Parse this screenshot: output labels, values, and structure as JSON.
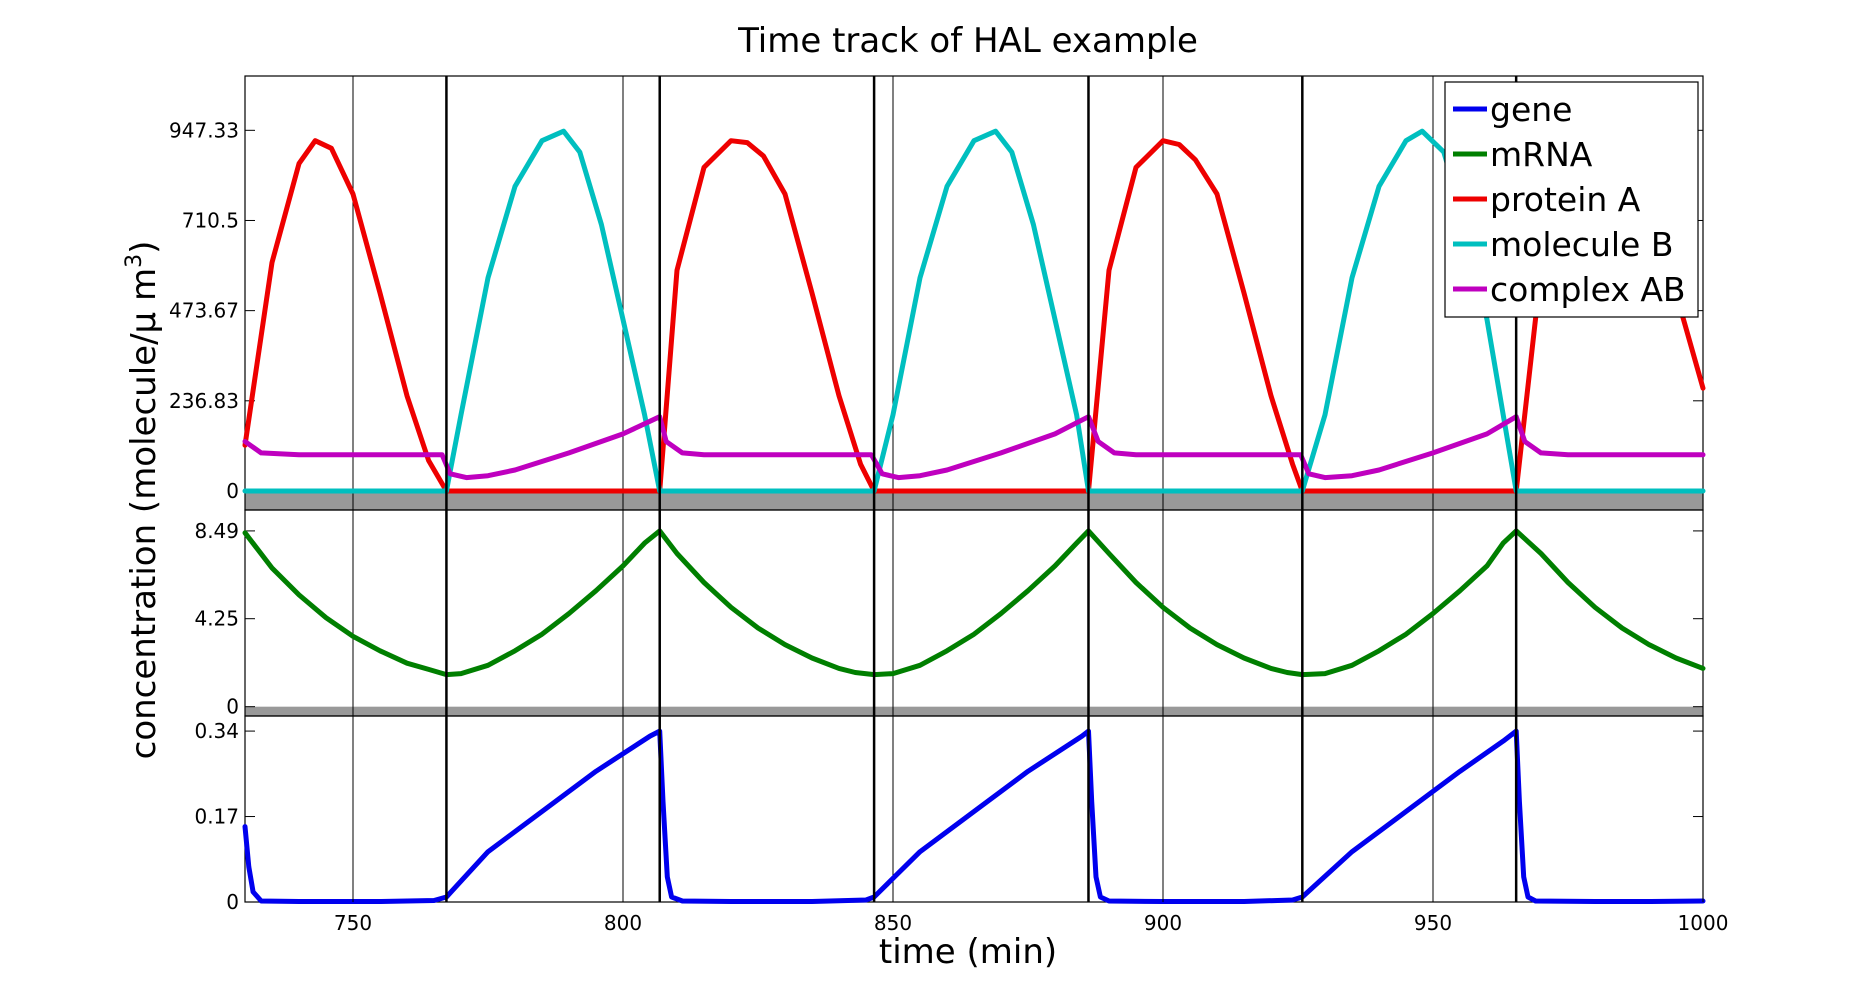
{
  "chart_data": {
    "type": "line",
    "title": "Time track of HAL example",
    "xlabel": "time (min)",
    "ylabel": "concentration (molecule/μ m",
    "ylabel_superscript": "3",
    "ylabel_close": ")",
    "xlim": [
      730,
      1000
    ],
    "x_ticks": [
      750,
      800,
      850,
      900,
      950,
      1000
    ],
    "x_tick_labels": [
      "750",
      "800",
      "850",
      "900",
      "950",
      "1000"
    ],
    "period_min": 39.65,
    "event_lines": [
      767.3,
      806.8,
      846.5,
      886.2,
      925.8,
      965.4
    ],
    "legend": {
      "placement": "top-right",
      "entries": [
        {
          "name": "gene",
          "color": "#0000ee"
        },
        {
          "name": "mRNA",
          "color": "#007f00"
        },
        {
          "name": "protein A",
          "color": "#ee0000"
        },
        {
          "name": "molecule B",
          "color": "#00bfbf"
        },
        {
          "name": "complex AB",
          "color": "#bf00bf"
        }
      ]
    },
    "panels": [
      {
        "id": "top",
        "ylim": [
          -50,
          1090
        ],
        "y_ticks": [
          0,
          236.83,
          473.67,
          710.5,
          947.33
        ],
        "y_tick_labels": [
          "0",
          "236.83",
          "473.67",
          "710.5",
          "947.33"
        ],
        "series": [
          {
            "name": "protein A",
            "color": "#ee0000",
            "x": [
              730,
              735,
              740,
              743,
              746,
              750,
              755,
              760,
              764,
              767.3,
              769,
              775,
              780,
              785,
              790,
              795,
              800,
              804,
              806.8,
              810,
              815,
              820,
              823,
              826,
              830,
              835,
              840,
              844,
              846.5,
              850,
              855,
              860,
              865,
              870,
              875,
              880,
              884,
              886.2,
              890,
              895,
              900,
              903,
              906,
              910,
              915,
              920,
              924,
              925.8,
              930,
              935,
              940,
              945,
              950,
              955,
              960,
              963,
              965.4,
              970,
              975,
              980,
              983,
              986,
              990,
              995,
              1000
            ],
            "y": [
              120,
              600,
              860,
              920,
              900,
              780,
              520,
              250,
              80,
              0,
              0,
              0,
              0,
              0,
              0,
              0,
              0,
              0,
              0,
              580,
              850,
              920,
              915,
              880,
              780,
              520,
              250,
              70,
              0,
              0,
              0,
              0,
              0,
              0,
              0,
              0,
              0,
              0,
              580,
              850,
              920,
              910,
              870,
              780,
              520,
              250,
              70,
              0,
              0,
              0,
              0,
              0,
              0,
              0,
              0,
              0,
              0,
              580,
              850,
              920,
              915,
              880,
              780,
              520,
              270
            ]
          },
          {
            "name": "molecule B",
            "color": "#00bfbf",
            "x": [
              730,
              750,
              767.3,
              770,
              775,
              780,
              785,
              789,
              792,
              796,
              800,
              804,
              806.8,
              810,
              830,
              846.5,
              850,
              855,
              860,
              865,
              869,
              872,
              876,
              880,
              884,
              886.2,
              890,
              910,
              925.8,
              930,
              935,
              940,
              945,
              948,
              952,
              956,
              960,
              963,
              965.4,
              970,
              1000
            ],
            "y": [
              0,
              0,
              0,
              200,
              560,
              800,
              920,
              945,
              890,
              700,
              450,
              200,
              0,
              0,
              0,
              0,
              200,
              560,
              800,
              920,
              945,
              890,
              700,
              450,
              200,
              0,
              0,
              0,
              0,
              200,
              560,
              800,
              920,
              945,
              890,
              700,
              450,
              200,
              0,
              0,
              0
            ]
          },
          {
            "name": "complex AB",
            "color": "#bf00bf",
            "x": [
              730,
              733,
              740,
              750,
              760,
              766.5,
              768,
              771,
              775,
              780,
              790,
              800,
              806.8,
              808,
              811,
              815,
              830,
              846,
              848,
              851,
              855,
              860,
              870,
              880,
              886.2,
              888,
              891,
              895,
              910,
              925.5,
              927,
              930,
              935,
              940,
              950,
              960,
              965.4,
              967,
              970,
              975,
              990,
              1000
            ],
            "y": [
              130,
              100,
              95,
              95,
              95,
              95,
              45,
              35,
              40,
              55,
              100,
              150,
              195,
              130,
              100,
              95,
              95,
              95,
              45,
              35,
              40,
              55,
              100,
              150,
              195,
              130,
              100,
              95,
              95,
              95,
              45,
              35,
              40,
              55,
              100,
              150,
              195,
              130,
              100,
              95,
              95,
              95
            ]
          }
        ]
      },
      {
        "id": "middle",
        "ylim": [
          -0.45,
          9.5
        ],
        "y_ticks": [
          0,
          4.25,
          8.49
        ],
        "y_tick_labels": [
          "0",
          "4.25",
          "8.49"
        ],
        "series": [
          {
            "name": "mRNA",
            "color": "#007f00",
            "x": [
              730,
              735,
              740,
              745,
              750,
              755,
              760,
              764,
              767.3,
              770,
              775,
              780,
              785,
              790,
              795,
              800,
              804,
              806.8,
              810,
              815,
              820,
              825,
              830,
              835,
              840,
              843,
              846.5,
              850,
              855,
              860,
              865,
              870,
              875,
              880,
              884,
              886.2,
              890,
              895,
              900,
              905,
              910,
              915,
              920,
              923,
              925.8,
              930,
              935,
              940,
              945,
              950,
              955,
              960,
              963,
              965.4,
              970,
              975,
              980,
              985,
              990,
              995,
              1000
            ],
            "y": [
              8.4,
              6.7,
              5.4,
              4.3,
              3.4,
              2.7,
              2.1,
              1.8,
              1.55,
              1.6,
              2.0,
              2.7,
              3.5,
              4.5,
              5.6,
              6.8,
              7.9,
              8.49,
              7.4,
              6.0,
              4.8,
              3.8,
              3.0,
              2.35,
              1.85,
              1.65,
              1.55,
              1.6,
              2.0,
              2.7,
              3.5,
              4.5,
              5.6,
              6.8,
              7.9,
              8.49,
              7.4,
              6.0,
              4.8,
              3.8,
              3.0,
              2.35,
              1.85,
              1.65,
              1.55,
              1.6,
              2.0,
              2.7,
              3.5,
              4.5,
              5.6,
              6.8,
              7.9,
              8.49,
              7.4,
              6.0,
              4.8,
              3.8,
              3.0,
              2.35,
              1.85
            ]
          }
        ]
      },
      {
        "id": "bottom",
        "ylim": [
          0,
          0.37
        ],
        "y_ticks": [
          0,
          0.17,
          0.34
        ],
        "y_tick_labels": [
          "0",
          "0.17",
          "0.34"
        ],
        "series": [
          {
            "name": "gene",
            "color": "#0000ee",
            "x": [
              730,
              730.7,
              731.5,
              733,
              740,
              755,
              765,
              767.3,
              775,
              785,
              795,
              805,
              806.8,
              807.4,
              808.2,
              809,
              811,
              820,
              835,
              845,
              846.5,
              855,
              865,
              875,
              885,
              886.2,
              886.8,
              887.6,
              888.4,
              890,
              900,
              915,
              924,
              925.8,
              935,
              945,
              955,
              963,
              965.4,
              966,
              966.8,
              967.6,
              969,
              980,
              990,
              1000
            ],
            "y": [
              0.15,
              0.07,
              0.02,
              0.002,
              0.001,
              0.001,
              0.003,
              0.01,
              0.1,
              0.18,
              0.26,
              0.33,
              0.34,
              0.2,
              0.05,
              0.01,
              0.002,
              0.001,
              0.001,
              0.004,
              0.01,
              0.1,
              0.18,
              0.26,
              0.33,
              0.34,
              0.2,
              0.05,
              0.01,
              0.002,
              0.001,
              0.001,
              0.004,
              0.01,
              0.1,
              0.18,
              0.26,
              0.32,
              0.34,
              0.2,
              0.05,
              0.01,
              0.002,
              0.001,
              0.001,
              0.002
            ]
          }
        ]
      }
    ]
  }
}
